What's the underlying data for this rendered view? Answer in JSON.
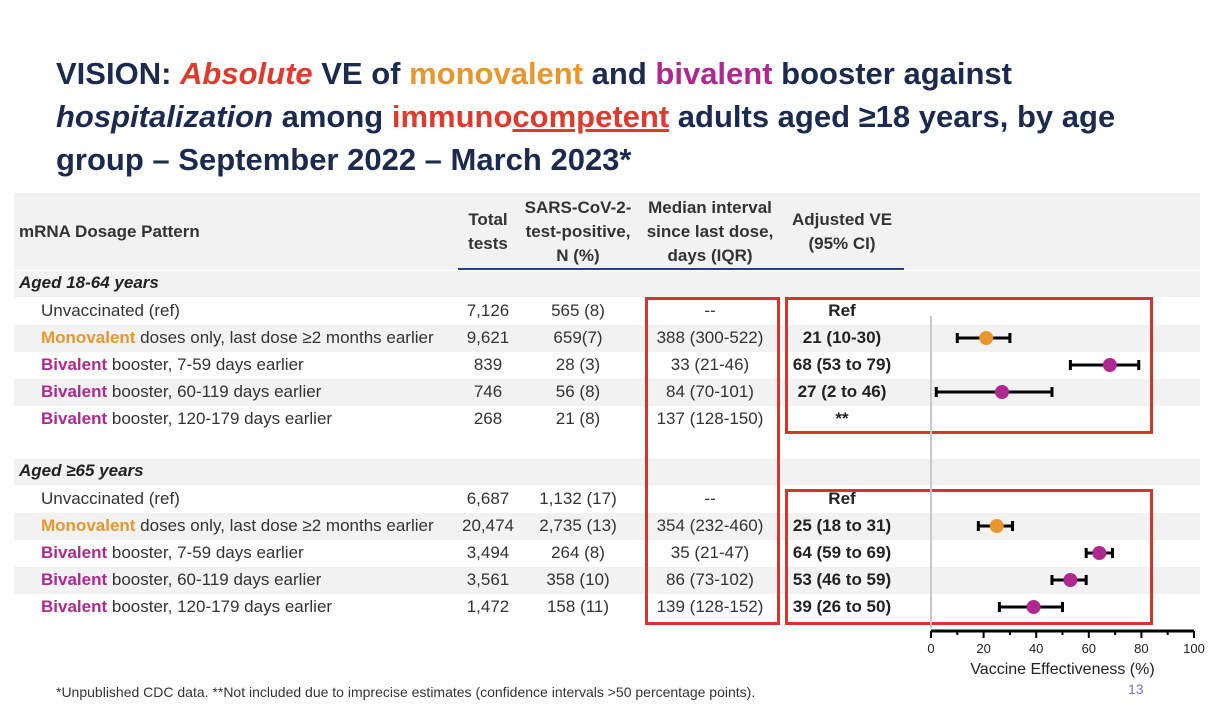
{
  "title": {
    "segments": [
      {
        "text": "VISION: ",
        "color": "#1b2a4e",
        "italic": false,
        "underline": false
      },
      {
        "text": "Absolute",
        "color": "#e03a2f",
        "italic": true,
        "underline": false
      },
      {
        "text": " VE of ",
        "color": "#1b2a4e",
        "italic": false,
        "underline": false
      },
      {
        "text": "monovalent",
        "color": "#e8962e",
        "italic": false,
        "underline": false
      },
      {
        "text": " and ",
        "color": "#1b2a4e",
        "italic": false,
        "underline": false
      },
      {
        "text": "bivalent",
        "color": "#b0288f",
        "italic": false,
        "underline": false
      },
      {
        "text": " booster against ",
        "color": "#1b2a4e",
        "italic": false,
        "underline": false
      },
      {
        "text": "hospitalization",
        "color": "#1b2a4e",
        "italic": true,
        "underline": false
      },
      {
        "text": " among ",
        "color": "#1b2a4e",
        "italic": false,
        "underline": false
      },
      {
        "text": "immuno",
        "color": "#e03a2f",
        "italic": false,
        "underline": false
      },
      {
        "text": "competent",
        "color": "#e03a2f",
        "italic": false,
        "underline": true
      },
      {
        "text": " adults aged ≥18 years, by age group – September 2022 – March 2023*",
        "color": "#1b2a4e",
        "italic": false,
        "underline": false
      }
    ]
  },
  "header": {
    "pattern": "mRNA Dosage Pattern",
    "total": "Total tests",
    "positive": "SARS-CoV-2-test-positive, N (%)",
    "interval": "Median interval since last dose, days (IQR)",
    "ve": "Adjusted VE (95% CI)"
  },
  "colors": {
    "monovalent": "#e8962e",
    "bivalent": "#b0288f",
    "box": "#d9342b"
  },
  "chart_data": {
    "type": "forest",
    "xlabel": "Vaccine Effectiveness (%)",
    "xlim": [
      0,
      100
    ],
    "xticks": [
      0,
      20,
      40,
      60,
      80,
      100
    ],
    "groups": [
      {
        "label": "Aged 18-64 years",
        "rows": [
          {
            "kw": "",
            "label": "Unvaccinated (ref)",
            "total": "7,126",
            "pos": "565 (8)",
            "interval": "--",
            "ve": "Ref",
            "type": "ref",
            "est": null,
            "lo": null,
            "hi": null
          },
          {
            "kw": "Monovalent",
            "label": " doses only, last dose ≥2 months earlier",
            "total": "9,621",
            "pos": "659(7)",
            "interval": "388 (300-522)",
            "ve": "21 (10-30)",
            "type": "monovalent",
            "est": 21,
            "lo": 10,
            "hi": 30
          },
          {
            "kw": "Bivalent",
            "label": " booster, 7-59 days earlier",
            "total": "839",
            "pos": "28 (3)",
            "interval": "33 (21-46)",
            "ve": "68 (53 to 79)",
            "type": "bivalent",
            "est": 68,
            "lo": 53,
            "hi": 79
          },
          {
            "kw": "Bivalent",
            "label": " booster, 60-119 days earlier",
            "total": "746",
            "pos": "56 (8)",
            "interval": "84 (70-101)",
            "ve": "27 (2 to 46)",
            "type": "bivalent",
            "est": 27,
            "lo": 2,
            "hi": 46
          },
          {
            "kw": "Bivalent",
            "label": " booster, 120-179 days earlier",
            "total": "268",
            "pos": "21 (8)",
            "interval": "137 (128-150)",
            "ve": "**",
            "type": "bivalent",
            "est": null,
            "lo": null,
            "hi": null
          }
        ]
      },
      {
        "label": "Aged ≥65 years",
        "rows": [
          {
            "kw": "",
            "label": "Unvaccinated (ref)",
            "total": "6,687",
            "pos": "1,132 (17)",
            "interval": "--",
            "ve": "Ref",
            "type": "ref",
            "est": null,
            "lo": null,
            "hi": null
          },
          {
            "kw": "Monovalent",
            "label": " doses only, last dose ≥2 months earlier",
            "total": "20,474",
            "pos": "2,735 (13)",
            "interval": "354 (232-460)",
            "ve": "25 (18 to 31)",
            "type": "monovalent",
            "est": 25,
            "lo": 18,
            "hi": 31
          },
          {
            "kw": "Bivalent",
            "label": " booster, 7-59 days earlier",
            "total": "3,494",
            "pos": "264 (8)",
            "interval": "35 (21-47)",
            "ve": "64 (59 to 69)",
            "type": "bivalent",
            "est": 64,
            "lo": 59,
            "hi": 69
          },
          {
            "kw": "Bivalent",
            "label": " booster, 60-119 days earlier",
            "total": "3,561",
            "pos": "358 (10)",
            "interval": "86 (73-102)",
            "ve": "53 (46 to 59)",
            "type": "bivalent",
            "est": 53,
            "lo": 46,
            "hi": 59
          },
          {
            "kw": "Bivalent",
            "label": " booster, 120-179 days earlier",
            "total": "1,472",
            "pos": "158 (11)",
            "interval": "139 (128-152)",
            "ve": "39 (26 to 50)",
            "type": "bivalent",
            "est": 39,
            "lo": 26,
            "hi": 50
          }
        ]
      }
    ]
  },
  "footnote": "*Unpublished CDC data.  **Not included due to imprecise estimates (confidence intervals >50 percentage points).",
  "page_number": "13"
}
